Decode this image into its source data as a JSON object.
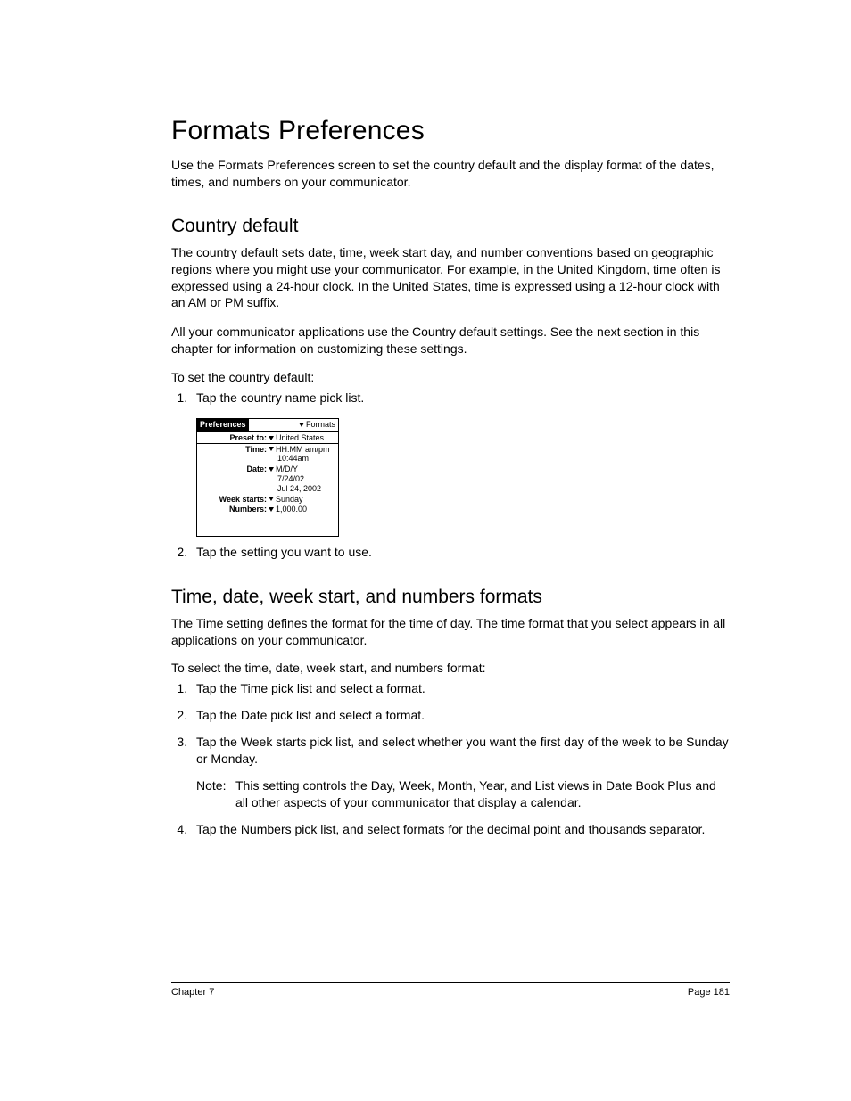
{
  "title": "Formats Preferences",
  "intro": "Use the Formats Preferences screen to set the country default and the display format of the dates, times, and numbers on your communicator.",
  "section1": {
    "heading": "Country default",
    "p1": "The country default sets date, time, week start day, and number conventions based on geographic regions where you might use your communicator. For example, in the United Kingdom, time often is expressed using a 24-hour clock. In the United States, time is expressed using a 12-hour clock with an AM or PM suffix.",
    "p2": "All your communicator applications use the Country default settings. See the next section in this chapter for information on customizing these settings.",
    "bold": "To set the country default:",
    "step1": "Tap the country name pick list.",
    "step2": "Tap the setting you want to use."
  },
  "device": {
    "header_left": "Preferences",
    "header_right": "Formats",
    "preset_label": "Preset to:",
    "preset_value": "United States",
    "time_label": "Time:",
    "time_value": "HH:MM am/pm",
    "time_sub": "10:44am",
    "date_label": "Date:",
    "date_value": "M/D/Y",
    "date_sub1": "7/24/02",
    "date_sub2": "Jul 24, 2002",
    "week_label": "Week starts:",
    "week_value": "Sunday",
    "numbers_label": "Numbers:",
    "numbers_value": "1,000.00"
  },
  "section2": {
    "heading": "Time, date, week start, and numbers formats",
    "p1": "The Time setting defines the format for the time of day. The time format that you select appears in all applications on your communicator.",
    "bold": "To select the time, date, week start, and numbers format:",
    "step1": "Tap the Time pick list and select a format.",
    "step2": "Tap the Date pick list and select a format.",
    "step3": "Tap the Week starts pick list, and select whether you want the first day of the week to be Sunday or Monday.",
    "note_label": "Note:",
    "note_text": "This setting controls the Day, Week, Month, Year, and List views in Date Book Plus and all other aspects of your communicator that display a calendar.",
    "step4": "Tap the Numbers pick list, and select formats for the decimal point and thousands separator."
  },
  "footer": {
    "left": "Chapter 7",
    "right": "Page 181"
  }
}
